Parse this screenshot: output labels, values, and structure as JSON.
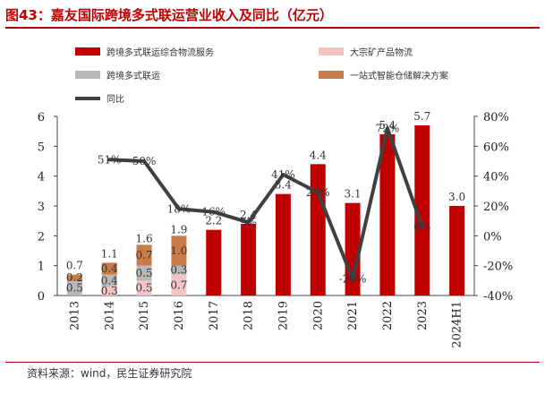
{
  "header": {
    "title": "图43：嘉友国际跨境多式联运营业收入及同比（亿元）"
  },
  "footer": {
    "source": "资料来源：wind，民生证券研究院"
  },
  "chart_data": {
    "type": "bar",
    "stacked": true,
    "categories": [
      "2013",
      "2014",
      "2015",
      "2016",
      "2017",
      "2018",
      "2019",
      "2020",
      "2021",
      "2022",
      "2023",
      "2024H1"
    ],
    "series": [
      {
        "name": "跨境多式联运综合物流服务",
        "color": "#c00000",
        "values": [
          null,
          null,
          null,
          null,
          2.2,
          2.4,
          3.4,
          4.4,
          3.1,
          5.4,
          5.7,
          3.0
        ]
      },
      {
        "name": "大宗矿产品物流",
        "color": "#f2c4c4",
        "values": [
          0.0,
          0.3,
          0.5,
          0.7,
          null,
          null,
          null,
          null,
          null,
          null,
          null,
          null
        ]
      },
      {
        "name": "跨境多式联运",
        "color": "#b8b8b8",
        "values": [
          0.5,
          0.4,
          0.5,
          0.3,
          null,
          null,
          null,
          null,
          null,
          null,
          null,
          null
        ]
      },
      {
        "name": "一站式智能仓储解决方案",
        "color": "#c97b4a",
        "values": [
          0.2,
          0.4,
          0.7,
          1.0,
          null,
          null,
          null,
          null,
          null,
          null,
          null,
          null
        ]
      }
    ],
    "totals": [
      0.7,
      1.1,
      1.6,
      1.9,
      2.2,
      2.4,
      3.4,
      4.4,
      3.1,
      5.4,
      5.7,
      3.0
    ],
    "line_series": {
      "name": "同比",
      "color": "#404040",
      "axis": "right",
      "values": [
        null,
        51,
        50,
        18,
        16,
        9,
        41,
        29,
        -29,
        72,
        6,
        null
      ],
      "labels": [
        null,
        "51%",
        "50%",
        "18%",
        "16%",
        "9%",
        "41%",
        "29%",
        "-29%",
        "72%",
        "6%",
        null
      ]
    },
    "y_left": {
      "min": 0,
      "max": 6,
      "ticks": [
        "0",
        "1",
        "2",
        "3",
        "4",
        "5",
        "6"
      ]
    },
    "y_right": {
      "min": -40,
      "max": 80,
      "ticks": [
        "-40%",
        "-20%",
        "0%",
        "20%",
        "40%",
        "60%",
        "80%"
      ]
    },
    "legend": [
      {
        "label": "跨境多式联运综合物流服务",
        "kind": "bar",
        "color": "#c00000"
      },
      {
        "label": "大宗矿产品物流",
        "kind": "bar",
        "color": "#f2c4c4"
      },
      {
        "label": "跨境多式联运",
        "kind": "bar",
        "color": "#b8b8b8"
      },
      {
        "label": "一站式智能仓储解决方案",
        "kind": "bar",
        "color": "#c97b4a"
      },
      {
        "label": "同比",
        "kind": "line",
        "color": "#404040"
      }
    ]
  }
}
